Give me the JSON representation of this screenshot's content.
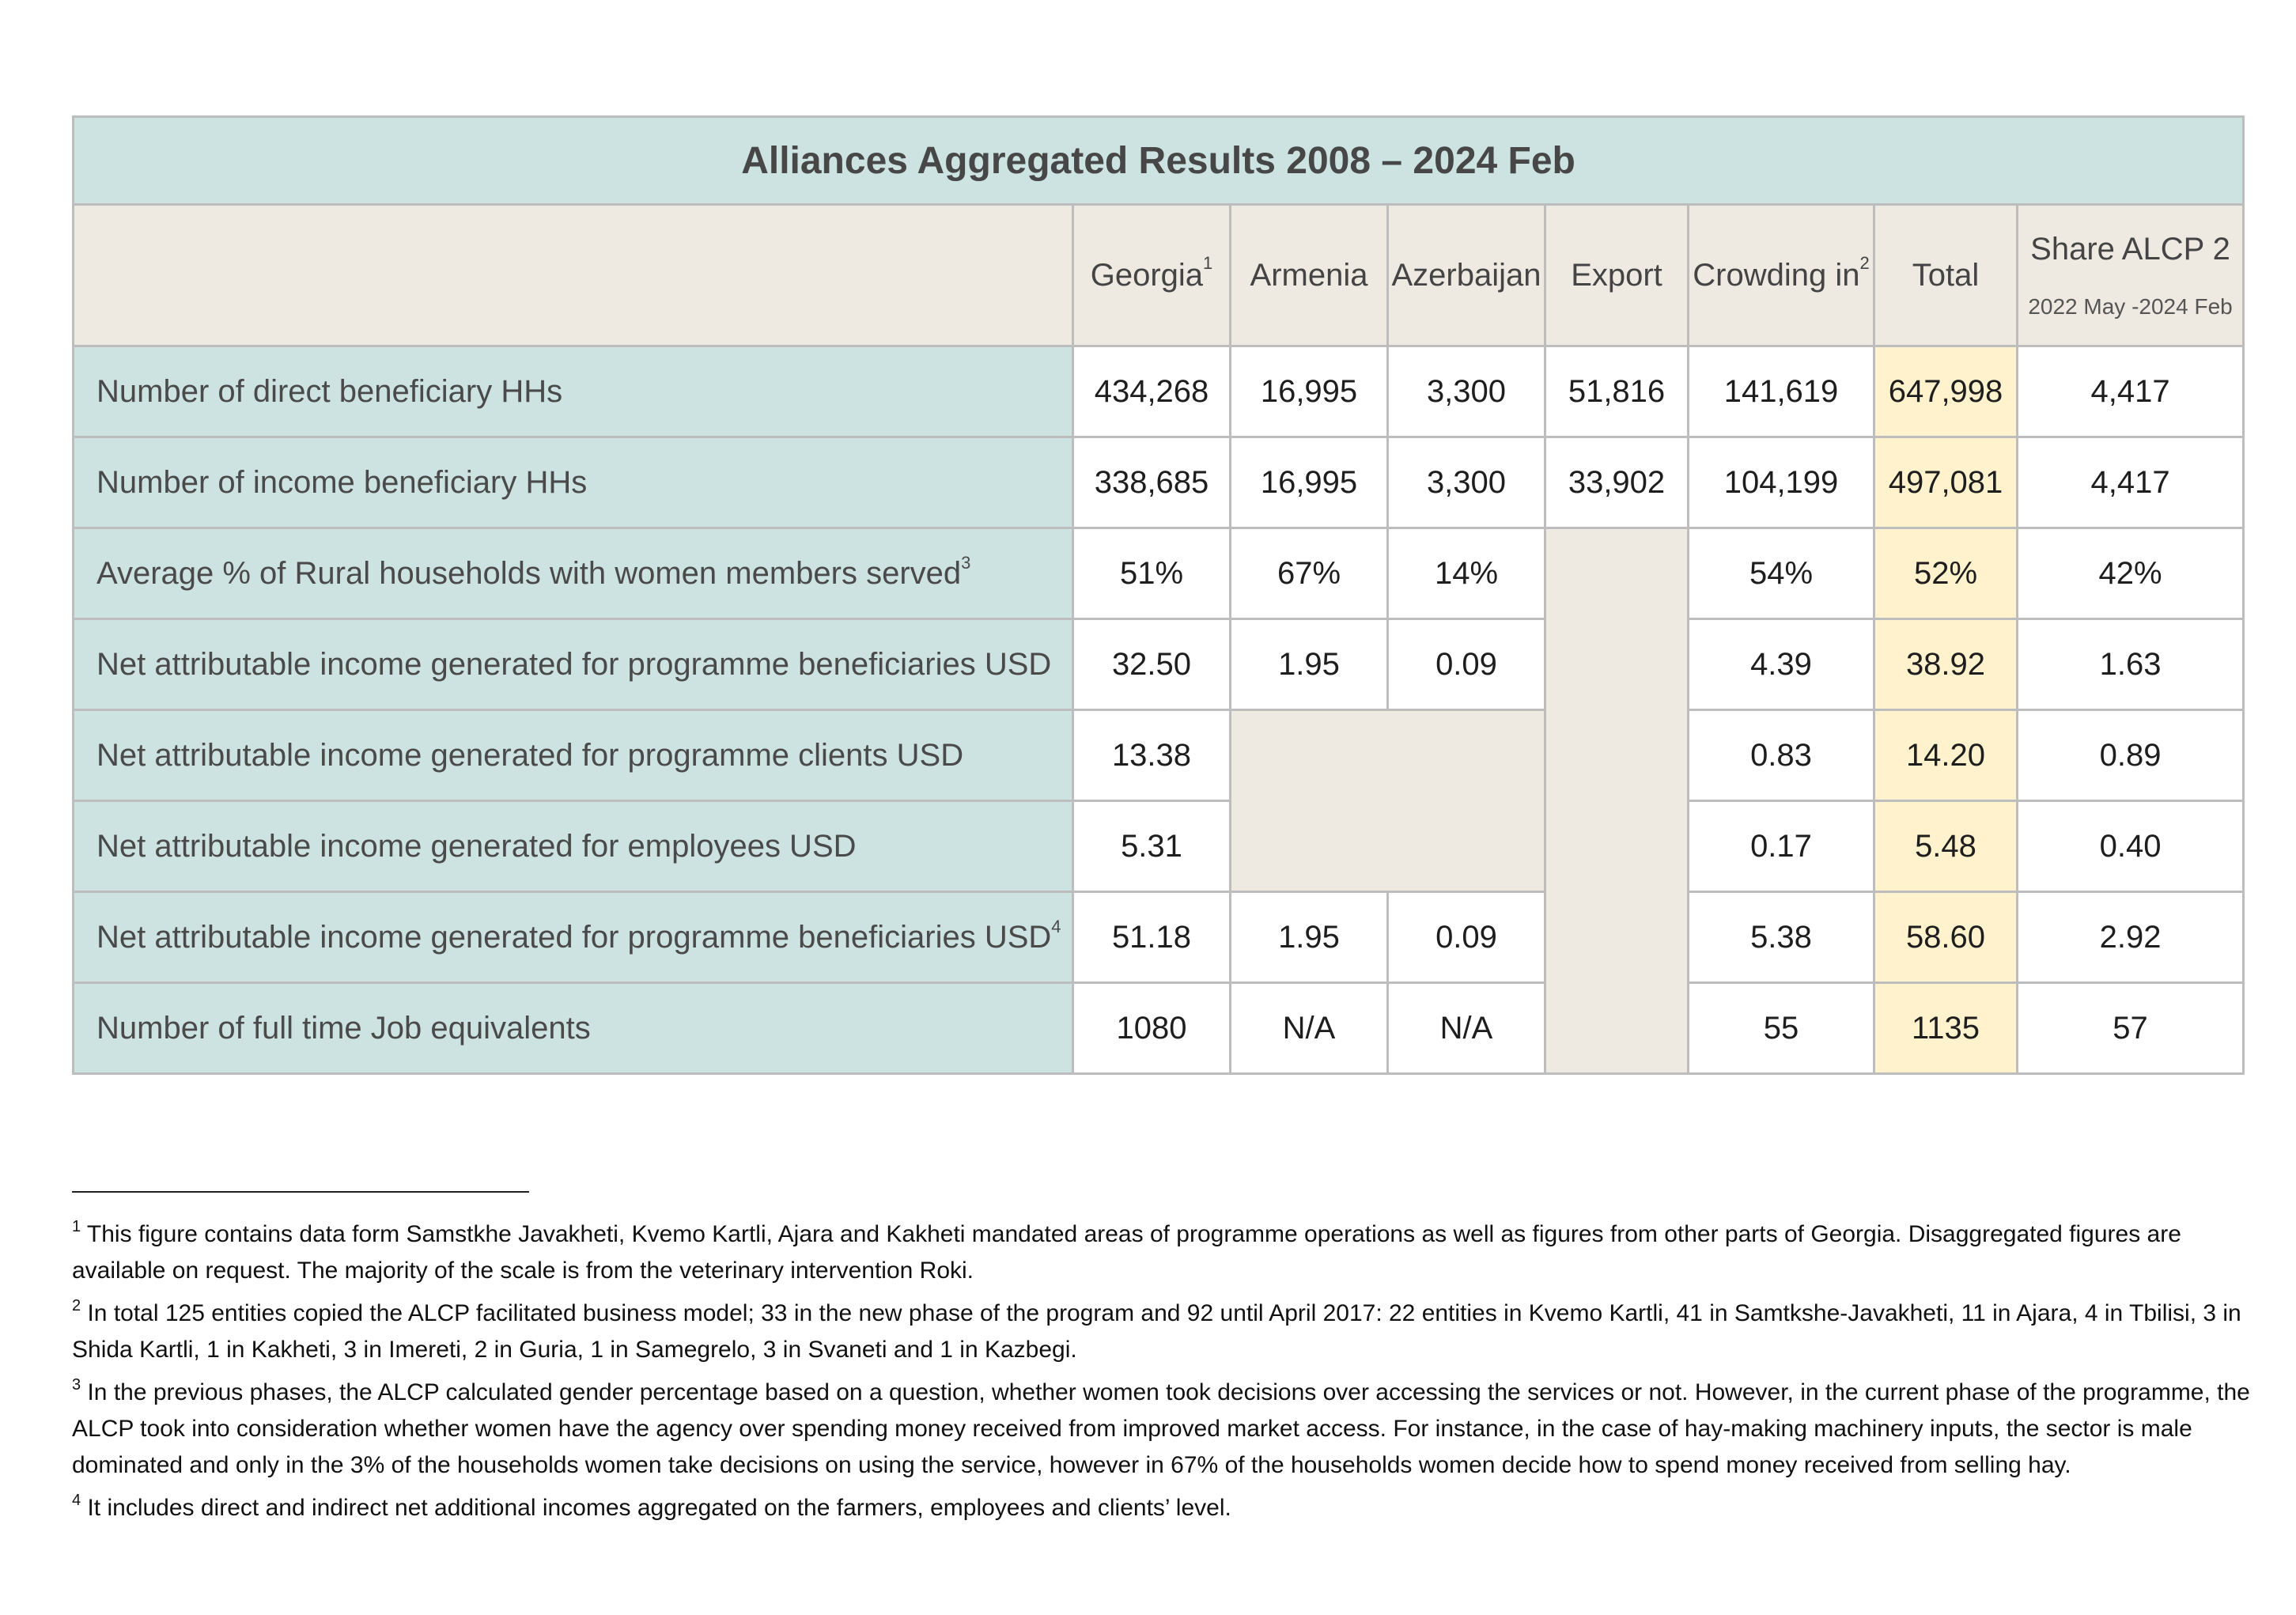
{
  "title": "Alliances Aggregated Results 2008 – 2024 Feb",
  "columns": {
    "georgia": "Georgia",
    "georgia_sup": "1",
    "armenia": "Armenia",
    "azerbaijan": "Azerbaijan",
    "export": "Export",
    "crowding": "Crowding in",
    "crowding_sup": "2",
    "total": "Total",
    "share": "Share ALCP 2",
    "share_sub": "2022 May -2024 Feb"
  },
  "rows": [
    {
      "label": "Number of direct beneficiary HHs",
      "sup": "",
      "georgia": "434,268",
      "armenia": "16,995",
      "azerbaijan": "3,300",
      "export": "51,816",
      "crowding": "141,619",
      "total": "647,998",
      "share": "4,417"
    },
    {
      "label": "Number of income beneficiary HHs",
      "sup": "",
      "georgia": "338,685",
      "armenia": "16,995",
      "azerbaijan": "3,300",
      "export": "33,902",
      "crowding": "104,199",
      "total": "497,081",
      "share": "4,417"
    },
    {
      "label": "Average % of Rural households with women members served",
      "sup": "3",
      "georgia": "51%",
      "armenia": "67%",
      "azerbaijan": "14%",
      "export": "",
      "crowding": "54%",
      "total": "52%",
      "share": "42%"
    },
    {
      "label": "Net attributable income generated for programme beneficiaries USD",
      "sup": "",
      "georgia": "32.50",
      "armenia": "1.95",
      "azerbaijan": "0.09",
      "export": "",
      "crowding": "4.39",
      "total": "38.92",
      "share": "1.63"
    },
    {
      "label": "Net attributable income generated for programme clients USD",
      "sup": "",
      "georgia": "13.38",
      "armenia": "",
      "azerbaijan": "",
      "export": "",
      "crowding": "0.83",
      "total": "14.20",
      "share": "0.89"
    },
    {
      "label": "Net attributable income generated for employees USD",
      "sup": "",
      "georgia": "5.31",
      "armenia": "",
      "azerbaijan": "",
      "export": "",
      "crowding": "0.17",
      "total": "5.48",
      "share": "0.40"
    },
    {
      "label": "Net attributable income generated for programme beneficiaries USD",
      "sup": "4",
      "georgia": "51.18",
      "armenia": "1.95",
      "azerbaijan": "0.09",
      "export": "",
      "crowding": "5.38",
      "total": "58.60",
      "share": "2.92"
    },
    {
      "label": "Number of full time Job equivalents",
      "sup": "",
      "georgia": "1080",
      "armenia": "N/A",
      "azerbaijan": "N/A",
      "export": "",
      "crowding": "55",
      "total": "1135",
      "share": "57"
    }
  ],
  "footnotes": [
    {
      "num": "1",
      "text": "This figure contains data form Samstkhe Javakheti, Kvemo Kartli, Ajara and Kakheti mandated areas of programme operations as well as figures from other parts of Georgia. Disaggregated figures are available on request. The majority of the scale is from the veterinary intervention Roki."
    },
    {
      "num": "2",
      "text": "In total 125 entities copied the ALCP facilitated business model; 33 in the new phase of the program and 92 until April 2017: 22 entities in Kvemo Kartli, 41 in Samtkshe-Javakheti, 11 in Ajara, 4 in Tbilisi, 3 in Shida Kartli, 1 in Kakheti, 3 in Imereti, 2 in Guria, 1 in Samegrelo, 3 in Svaneti and 1 in Kazbegi."
    },
    {
      "num": "3",
      "text": "In the previous phases, the ALCP calculated gender percentage based on a question, whether women took decisions over accessing the services or not. However, in the current phase of the programme, the ALCP took into consideration whether women have the agency over spending money received from improved market access. For instance, in the case of hay-making machinery inputs, the sector is male dominated and only in the 3% of the households women take decisions on using the service, however in 67% of the households women decide how to spend money received from selling hay."
    },
    {
      "num": "4",
      "text": "It includes direct and indirect net additional incomes aggregated on the farmers, employees and clients’ level."
    }
  ]
}
